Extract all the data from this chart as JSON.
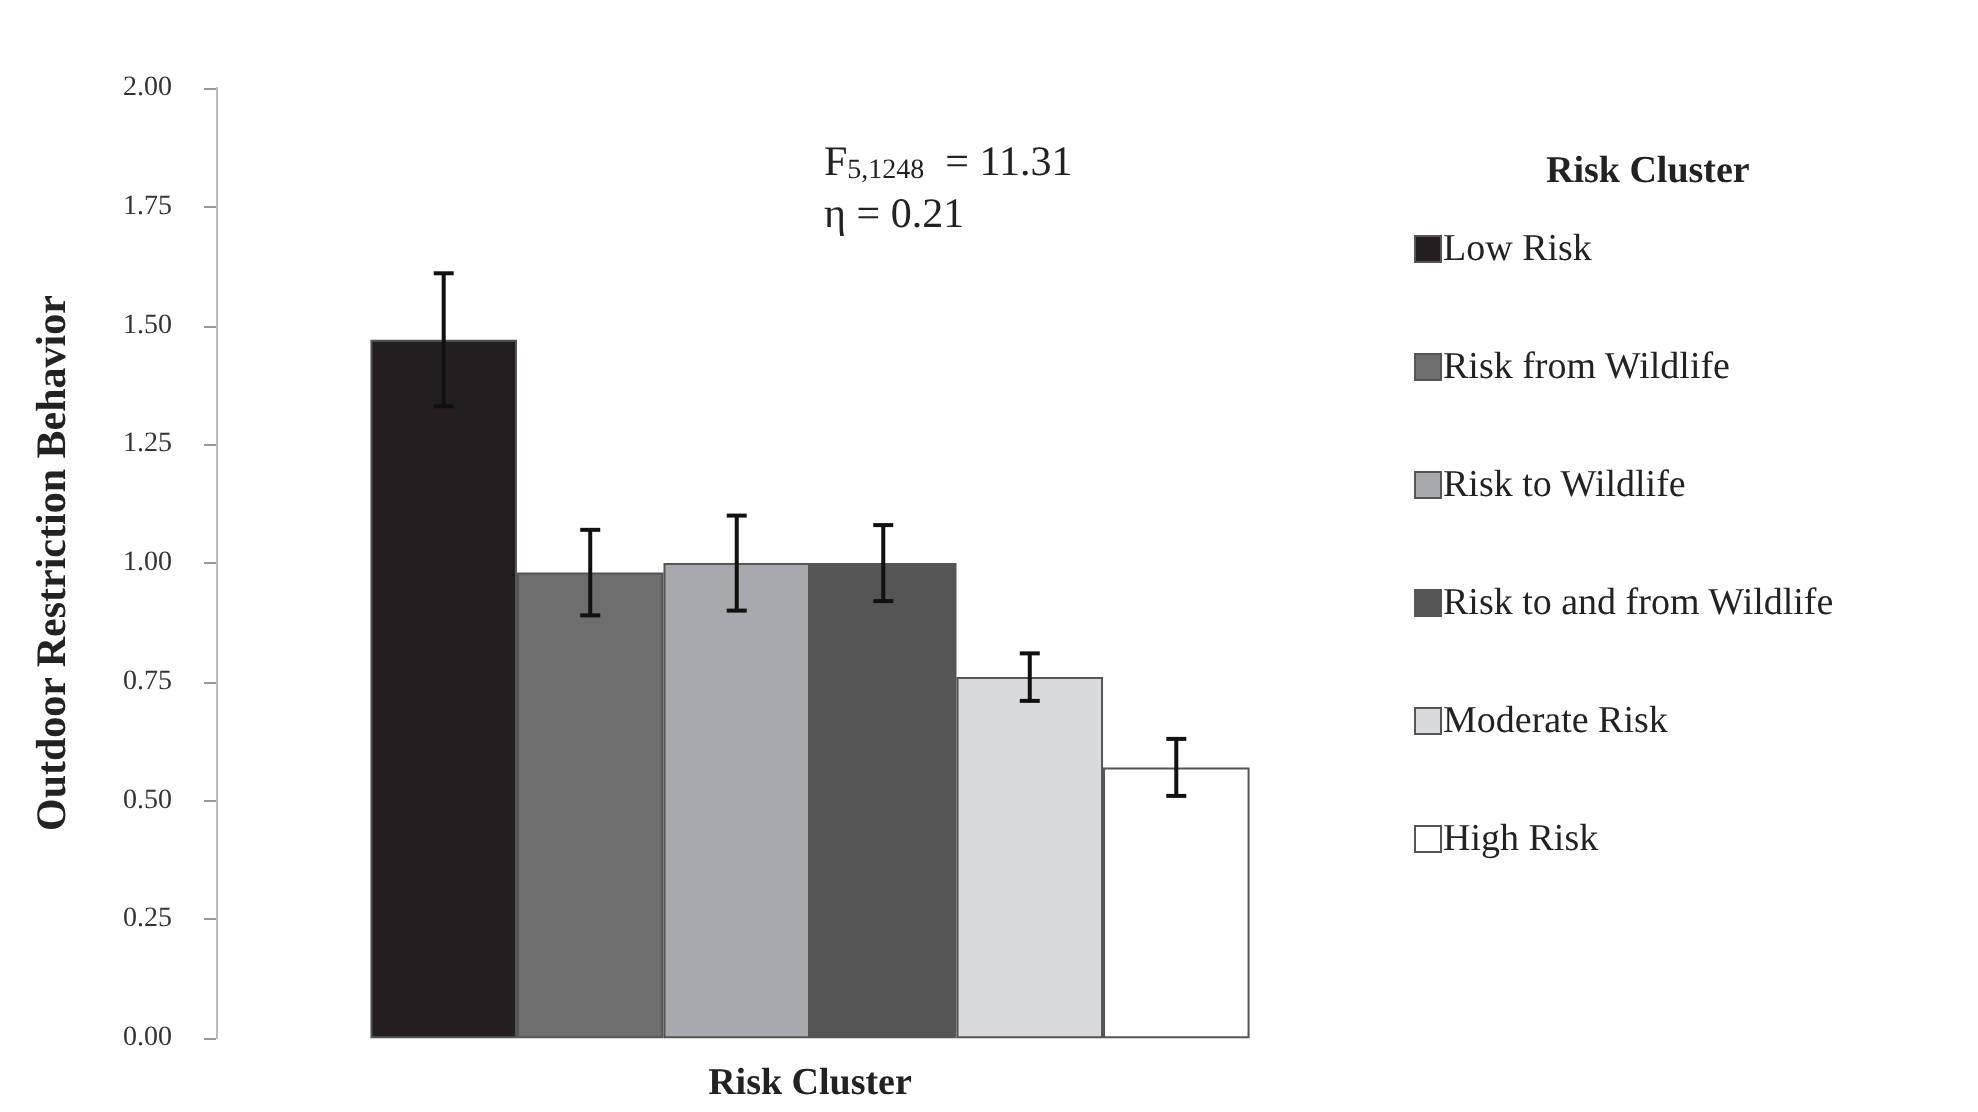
{
  "chart_data": {
    "type": "bar",
    "xlabel": "Risk Cluster",
    "ylabel": "Outdoor Restriction Behavior",
    "legend_title": "Risk Cluster",
    "annotations": [
      "F$_{5,1248}$  = 11.31",
      "η = 0.21"
    ],
    "categories": [
      null
    ],
    "series": [
      {
        "name": "Low Risk",
        "color": "#231f20",
        "values": [
          1.47
        ],
        "errors": [
          0.14
        ]
      },
      {
        "name": "Risk from Wildlife",
        "color": "#6e6e6e",
        "values": [
          0.98
        ],
        "errors": [
          0.09
        ]
      },
      {
        "name": "Risk to Wildlife",
        "color": "#a7a9ac",
        "values": [
          1.0
        ],
        "errors": [
          0.1
        ]
      },
      {
        "name": "Risk to and from Wildlife",
        "color": "#555555",
        "values": [
          1.0
        ],
        "errors": [
          0.08
        ]
      },
      {
        "name": "Moderate Risk",
        "color": "#d9dadc",
        "values": [
          0.76
        ],
        "errors": [
          0.05
        ]
      },
      {
        "name": "High Risk",
        "color": "#ffffff",
        "values": [
          0.57
        ],
        "errors": [
          0.06
        ]
      }
    ],
    "ylim": [
      0,
      2
    ],
    "yticks": [
      {
        "value": 0,
        "label": "0.00"
      },
      {
        "value": 0.25,
        "label": "0.25"
      },
      {
        "value": 0.5,
        "label": "0.50"
      },
      {
        "value": 0.75,
        "label": "0.75"
      },
      {
        "value": 1,
        "label": "1.00"
      },
      {
        "value": 1.25,
        "label": "1.25"
      },
      {
        "value": 1.5,
        "label": "1.50"
      },
      {
        "value": 1.75,
        "label": "1.75"
      },
      {
        "value": 2,
        "label": "2.00"
      }
    ],
    "grid": false,
    "legend": "right"
  }
}
